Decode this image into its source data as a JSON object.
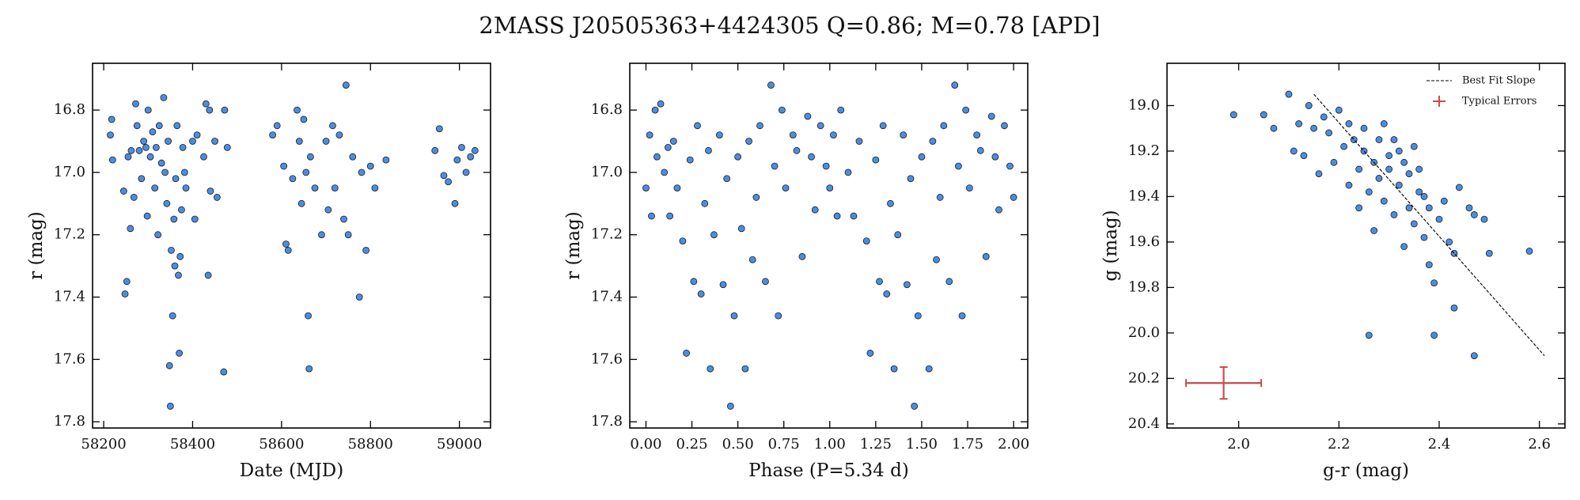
{
  "title": "2MASS J20505363+4424305  Q=0.86; M=0.78 [APD]",
  "chart_data": [
    {
      "type": "scatter",
      "xlabel": "Date (MJD)",
      "ylabel": "r (mag)",
      "color": "#4a8fdd",
      "y_inverted": true,
      "xlim": [
        58175,
        59070
      ],
      "ylim": [
        16.65,
        17.82
      ],
      "xticks": [
        58200,
        58400,
        58600,
        58800,
        59000
      ],
      "yticks": [
        16.8,
        {
          "value": 17,
          "label": "17.0"
        },
        17.2,
        17.4,
        17.6,
        17.8
      ],
      "x": [
        58215,
        58218,
        58220,
        58245,
        58248,
        58252,
        58255,
        58260,
        58262,
        58268,
        58272,
        58275,
        58280,
        58285,
        58290,
        58295,
        58298,
        58300,
        58305,
        58310,
        58315,
        58318,
        58322,
        58325,
        58330,
        58335,
        58338,
        58342,
        58345,
        58348,
        58350,
        58352,
        58355,
        58358,
        58360,
        58362,
        58365,
        58368,
        58370,
        58372,
        58375,
        58378,
        58382,
        58385,
        58400,
        58405,
        58410,
        58425,
        58430,
        58435,
        58438,
        58440,
        58450,
        58455,
        58470,
        58472,
        58478,
        58580,
        58590,
        58605,
        58610,
        58615,
        58625,
        58635,
        58640,
        58645,
        58650,
        58655,
        58660,
        58662,
        58665,
        58675,
        58690,
        58700,
        58705,
        58715,
        58720,
        58730,
        58740,
        58745,
        58750,
        58760,
        58775,
        58780,
        58790,
        58800,
        58810,
        58835,
        58945,
        58955,
        58965,
        58975,
        58990,
        58995,
        59005,
        59015,
        59025,
        59035
      ],
      "values": [
        16.88,
        16.83,
        16.96,
        17.06,
        17.39,
        17.35,
        16.95,
        17.18,
        16.93,
        17.08,
        16.78,
        16.85,
        16.93,
        17.02,
        16.9,
        16.92,
        17.14,
        16.8,
        16.95,
        16.87,
        17.05,
        16.92,
        17.2,
        16.85,
        16.97,
        16.76,
        17,
        17.1,
        16.9,
        17.62,
        17.75,
        17.25,
        17.46,
        17.15,
        17.3,
        17.02,
        16.85,
        17.33,
        17.58,
        17.27,
        17.12,
        16.92,
        17,
        17.05,
        16.9,
        17.15,
        16.88,
        16.95,
        16.78,
        17.33,
        16.8,
        17.06,
        16.9,
        17.08,
        17.64,
        16.8,
        16.92,
        16.88,
        16.85,
        16.98,
        17.23,
        17.25,
        17.02,
        16.8,
        16.9,
        17.1,
        16.83,
        17,
        17.46,
        17.63,
        16.95,
        17.05,
        17.2,
        16.9,
        17.12,
        16.85,
        17.05,
        16.88,
        17.15,
        16.72,
        17.2,
        16.95,
        17.4,
        17,
        17.25,
        16.98,
        17.05,
        16.96,
        16.93,
        16.86,
        17.01,
        17.03,
        17.1,
        16.96,
        16.92,
        17,
        16.95,
        16.93
      ]
    },
    {
      "type": "scatter",
      "xlabel": "Phase (P=5.34 d)",
      "ylabel": "r (mag)",
      "color": "#4a8fdd",
      "y_inverted": true,
      "xlim": [
        -0.088,
        2.077
      ],
      "ylim": [
        16.65,
        17.82
      ],
      "xticks": [
        {
          "value": 0,
          "label": "0.00"
        },
        {
          "value": 0.25,
          "label": "0.25"
        },
        {
          "value": 0.5,
          "label": "0.50"
        },
        {
          "value": 0.75,
          "label": "0.75"
        },
        {
          "value": 1,
          "label": "1.00"
        },
        {
          "value": 1.25,
          "label": "1.25"
        },
        {
          "value": 1.5,
          "label": "1.50"
        },
        {
          "value": 1.75,
          "label": "1.75"
        },
        {
          "value": 2,
          "label": "2.00"
        }
      ],
      "yticks": [
        16.8,
        {
          "value": 17,
          "label": "17.0"
        },
        17.2,
        17.4,
        17.6,
        17.8
      ],
      "x": [
        0,
        0.02,
        0.03,
        0.05,
        0.06,
        0.08,
        0.1,
        0.12,
        0.13,
        0.15,
        0.17,
        0.2,
        0.22,
        0.24,
        0.26,
        0.28,
        0.3,
        0.32,
        0.34,
        0.35,
        0.37,
        0.4,
        0.42,
        0.44,
        0.46,
        0.48,
        0.5,
        0.52,
        0.54,
        0.56,
        0.58,
        0.6,
        0.62,
        0.65,
        0.68,
        0.7,
        0.72,
        0.74,
        0.76,
        0.8,
        0.82,
        0.85,
        0.88,
        0.9,
        0.92,
        0.95,
        0.98,
        1,
        1.02,
        1.04,
        1.06,
        1.1,
        1.13,
        1.16,
        1.2,
        1.22,
        1.25,
        1.27,
        1.29,
        1.31,
        1.33,
        1.35,
        1.37,
        1.4,
        1.42,
        1.44,
        1.46,
        1.48,
        1.5,
        1.54,
        1.56,
        1.58,
        1.6,
        1.62,
        1.65,
        1.68,
        1.7,
        1.72,
        1.74,
        1.76,
        1.8,
        1.82,
        1.85,
        1.88,
        1.9,
        1.92,
        1.95,
        1.98,
        2
      ],
      "values": [
        17.05,
        16.88,
        17.14,
        16.8,
        16.95,
        16.78,
        17,
        16.92,
        17.14,
        16.9,
        17.05,
        17.22,
        17.58,
        16.96,
        17.35,
        16.85,
        17.39,
        17.1,
        16.93,
        17.63,
        17.2,
        16.88,
        17.36,
        17.02,
        17.75,
        17.46,
        16.95,
        17.18,
        17.63,
        16.9,
        17.28,
        17.08,
        16.85,
        17.35,
        16.72,
        16.98,
        17.46,
        16.8,
        17.05,
        16.88,
        16.93,
        17.27,
        16.82,
        16.95,
        17.12,
        16.85,
        16.98,
        17.05,
        16.88,
        17.14,
        16.8,
        17,
        17.14,
        16.9,
        17.22,
        17.58,
        16.96,
        17.35,
        16.85,
        17.39,
        17.1,
        17.63,
        17.2,
        16.88,
        17.36,
        17.02,
        17.75,
        17.46,
        16.95,
        17.63,
        16.9,
        17.28,
        17.08,
        16.85,
        17.35,
        16.72,
        16.98,
        17.46,
        16.8,
        17.05,
        16.88,
        16.93,
        17.27,
        16.82,
        16.95,
        17.12,
        16.85,
        16.98,
        17.08
      ]
    },
    {
      "type": "scatter",
      "xlabel": "g-r (mag)",
      "ylabel": "g (mag)",
      "color": "#4a8fdd",
      "y_inverted": true,
      "xlim": [
        1.857,
        2.651
      ],
      "ylim": [
        18.814,
        20.418
      ],
      "xticks": [
        {
          "value": 2,
          "label": "2.0"
        },
        2.2,
        2.4,
        2.6
      ],
      "yticks": [
        {
          "value": 19,
          "label": "19.0"
        },
        19.2,
        19.4,
        19.6,
        19.8,
        {
          "value": 20,
          "label": "20.0"
        },
        20.2,
        20.4
      ],
      "legend": "upper right",
      "x": [
        1.99,
        2.05,
        2.07,
        2.1,
        2.11,
        2.12,
        2.13,
        2.14,
        2.15,
        2.16,
        2.17,
        2.18,
        2.19,
        2.2,
        2.21,
        2.22,
        2.22,
        2.23,
        2.24,
        2.24,
        2.25,
        2.25,
        2.26,
        2.26,
        2.27,
        2.27,
        2.28,
        2.28,
        2.29,
        2.29,
        2.3,
        2.3,
        2.31,
        2.31,
        2.32,
        2.32,
        2.33,
        2.33,
        2.34,
        2.34,
        2.35,
        2.35,
        2.36,
        2.36,
        2.37,
        2.37,
        2.38,
        2.38,
        2.39,
        2.39,
        2.4,
        2.41,
        2.42,
        2.43,
        2.43,
        2.44,
        2.46,
        2.47,
        2.47,
        2.49,
        2.5,
        2.58
      ],
      "values": [
        19.04,
        19.04,
        19.1,
        18.95,
        19.2,
        19.08,
        19.22,
        19,
        19.1,
        19.3,
        19.05,
        19.12,
        19.25,
        19.02,
        19.18,
        19.08,
        19.35,
        19.15,
        19.28,
        19.45,
        19.1,
        19.2,
        19.38,
        20.01,
        19.25,
        19.55,
        19.15,
        19.32,
        19.08,
        19.42,
        19.22,
        19.28,
        19.15,
        19.48,
        19.35,
        19.2,
        19.25,
        19.62,
        19.3,
        19.45,
        19.18,
        19.52,
        19.38,
        19.28,
        19.4,
        19.58,
        19.7,
        19.45,
        19.78,
        20.01,
        19.5,
        19.42,
        19.6,
        19.89,
        19.65,
        19.36,
        19.45,
        19.48,
        20.1,
        19.5,
        19.65,
        19.64
      ],
      "fit_line": {
        "name": "Best Fit Slope",
        "color": "#000000",
        "x": [
          2.15,
          2.61
        ],
        "values": [
          18.95,
          20.1
        ]
      },
      "error_bar": {
        "name": "Typical Errors",
        "color": "#cc4c4c",
        "x": 1.97,
        "value": 20.22,
        "xerr": 0.075,
        "yerr": 0.07
      }
    }
  ]
}
